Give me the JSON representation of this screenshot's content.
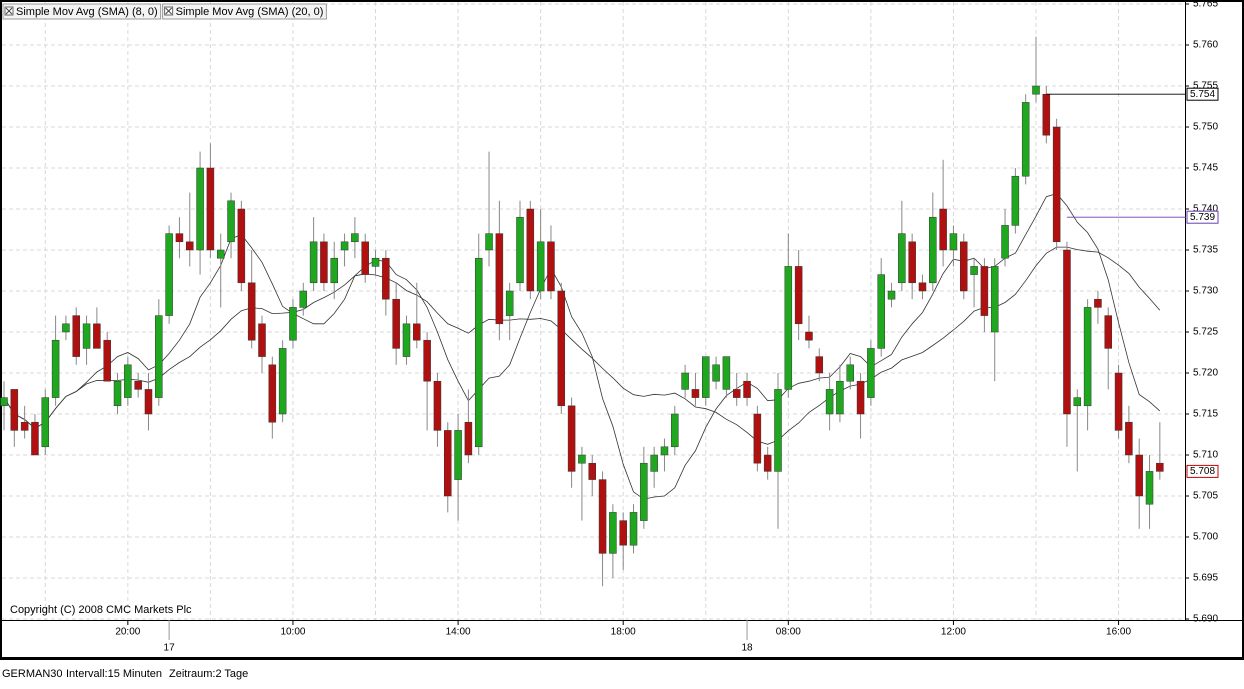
{
  "chart_data": {
    "type": "candlestick",
    "open": [
      5.716,
      5.718,
      5.714,
      5.714,
      5.711,
      5.717,
      5.725,
      5.727,
      5.723,
      5.726,
      5.724,
      5.716,
      5.717,
      5.719,
      5.718,
      5.717,
      5.727,
      5.737,
      5.736,
      5.735,
      5.745,
      5.734,
      5.736,
      5.74,
      5.731,
      5.726,
      5.721,
      5.715,
      5.724,
      5.728,
      5.731,
      5.736,
      5.731,
      5.735,
      5.736,
      5.736,
      5.733,
      5.734,
      5.729,
      5.722,
      5.726,
      5.724,
      5.719,
      5.713,
      5.707,
      5.714,
      5.711,
      5.735,
      5.737,
      5.727,
      5.731,
      5.74,
      5.73,
      5.736,
      5.73,
      5.716,
      5.709,
      5.709,
      5.707,
      5.698,
      5.702,
      5.699,
      5.702,
      5.708,
      5.71,
      5.711,
      5.718,
      5.718,
      5.717,
      5.719,
      5.718,
      5.718,
      5.719,
      5.715,
      5.71,
      5.708,
      5.718,
      5.733,
      5.725,
      5.722,
      5.715,
      5.715,
      5.719,
      5.719,
      5.717,
      5.723,
      5.729,
      5.731,
      5.736,
      5.731,
      5.731,
      5.74,
      5.735,
      5.736,
      5.732,
      5.733,
      5.725,
      5.734,
      5.738,
      5.744,
      5.754,
      5.754,
      5.75,
      5.735,
      5.716,
      5.716,
      5.729,
      5.727,
      5.72,
      5.714,
      5.71,
      5.704,
      5.709
    ],
    "high": [
      5.719,
      5.718,
      5.716,
      5.715,
      5.718,
      5.727,
      5.727,
      5.728,
      5.727,
      5.728,
      5.725,
      5.72,
      5.722,
      5.72,
      5.72,
      5.729,
      5.738,
      5.739,
      5.742,
      5.747,
      5.748,
      5.737,
      5.742,
      5.741,
      5.735,
      5.727,
      5.722,
      5.724,
      5.729,
      5.731,
      5.739,
      5.737,
      5.736,
      5.737,
      5.739,
      5.737,
      5.735,
      5.735,
      5.731,
      5.727,
      5.731,
      5.725,
      5.72,
      5.714,
      5.715,
      5.718,
      5.737,
      5.747,
      5.741,
      5.731,
      5.741,
      5.741,
      5.74,
      5.738,
      5.731,
      5.717,
      5.711,
      5.71,
      5.708,
      5.704,
      5.703,
      5.704,
      5.711,
      5.711,
      5.712,
      5.716,
      5.721,
      5.72,
      5.722,
      5.722,
      5.722,
      5.72,
      5.72,
      5.716,
      5.711,
      5.72,
      5.737,
      5.735,
      5.727,
      5.723,
      5.72,
      5.721,
      5.722,
      5.72,
      5.724,
      5.734,
      5.731,
      5.741,
      5.737,
      5.732,
      5.742,
      5.746,
      5.738,
      5.737,
      5.734,
      5.734,
      5.734,
      5.74,
      5.745,
      5.754,
      5.761,
      5.755,
      5.751,
      5.736,
      5.718,
      5.729,
      5.73,
      5.728,
      5.721,
      5.716,
      5.712,
      5.71,
      5.714
    ],
    "low": [
      5.713,
      5.711,
      5.712,
      5.71,
      5.71,
      5.716,
      5.724,
      5.721,
      5.721,
      5.723,
      5.719,
      5.715,
      5.716,
      5.717,
      5.713,
      5.716,
      5.726,
      5.734,
      5.733,
      5.732,
      5.734,
      5.728,
      5.734,
      5.73,
      5.723,
      5.72,
      5.712,
      5.714,
      5.723,
      5.727,
      5.73,
      5.73,
      5.729,
      5.733,
      5.734,
      5.731,
      5.732,
      5.727,
      5.721,
      5.721,
      5.723,
      5.713,
      5.711,
      5.703,
      5.702,
      5.709,
      5.71,
      5.733,
      5.724,
      5.724,
      5.73,
      5.729,
      5.729,
      5.729,
      5.715,
      5.706,
      5.702,
      5.705,
      5.694,
      5.695,
      5.696,
      5.698,
      5.701,
      5.706,
      5.708,
      5.71,
      5.717,
      5.716,
      5.716,
      5.718,
      5.717,
      5.716,
      5.716,
      5.708,
      5.707,
      5.701,
      5.717,
      5.724,
      5.723,
      5.719,
      5.713,
      5.714,
      5.718,
      5.712,
      5.716,
      5.722,
      5.728,
      5.73,
      5.729,
      5.729,
      5.73,
      5.733,
      5.733,
      5.729,
      5.728,
      5.725,
      5.719,
      5.733,
      5.737,
      5.743,
      5.753,
      5.748,
      5.735,
      5.711,
      5.708,
      5.713,
      5.726,
      5.718,
      5.712,
      5.709,
      5.701,
      5.701,
      5.707
    ],
    "close": [
      5.717,
      5.713,
      5.713,
      5.71,
      5.717,
      5.724,
      5.726,
      5.722,
      5.726,
      5.723,
      5.719,
      5.719,
      5.721,
      5.718,
      5.715,
      5.727,
      5.737,
      5.736,
      5.735,
      5.745,
      5.735,
      5.735,
      5.741,
      5.731,
      5.724,
      5.722,
      5.714,
      5.723,
      5.728,
      5.73,
      5.736,
      5.731,
      5.734,
      5.736,
      5.737,
      5.732,
      5.734,
      5.729,
      5.723,
      5.726,
      5.724,
      5.719,
      5.713,
      5.705,
      5.713,
      5.71,
      5.734,
      5.737,
      5.726,
      5.73,
      5.739,
      5.73,
      5.736,
      5.73,
      5.716,
      5.708,
      5.71,
      5.707,
      5.698,
      5.703,
      5.699,
      5.703,
      5.709,
      5.71,
      5.711,
      5.715,
      5.72,
      5.717,
      5.722,
      5.721,
      5.722,
      5.717,
      5.717,
      5.709,
      5.708,
      5.718,
      5.733,
      5.726,
      5.724,
      5.72,
      5.718,
      5.719,
      5.721,
      5.715,
      5.723,
      5.732,
      5.73,
      5.737,
      5.731,
      5.73,
      5.739,
      5.735,
      5.737,
      5.73,
      5.733,
      5.727,
      5.733,
      5.738,
      5.744,
      5.753,
      5.755,
      5.749,
      5.736,
      5.715,
      5.717,
      5.728,
      5.728,
      5.723,
      5.713,
      5.71,
      5.705,
      5.708,
      5.708
    ],
    "up_color": "#1fa81f",
    "down_color": "#b01010",
    "indicators": [
      {
        "name": "Simple Mov Avg (SMA) (8, 0)",
        "period": 8,
        "color": "#333333"
      },
      {
        "name": "Simple Mov Avg (SMA) (20, 0)",
        "period": 20,
        "color": "#333333"
      }
    ],
    "ylim": [
      5.69,
      5.765
    ],
    "yticks": [
      {
        "value": 5.69,
        "label": "5.690"
      },
      5.695,
      {
        "value": 5.7,
        "label": "5.700"
      },
      5.705,
      {
        "value": 5.71,
        "label": "5.710"
      },
      5.715,
      {
        "value": 5.72,
        "label": "5.720"
      },
      5.725,
      {
        "value": 5.73,
        "label": "5.730"
      },
      5.735,
      {
        "value": 5.74,
        "label": "5.740"
      },
      5.745,
      {
        "value": 5.75,
        "label": "5.750"
      },
      5.755,
      {
        "value": 5.76,
        "label": "5.760"
      },
      5.765
    ],
    "xticks": [
      {
        "value": 12,
        "label": "20:00"
      },
      {
        "value": 28,
        "label": "10:00"
      },
      {
        "value": 44,
        "label": "14:00"
      },
      {
        "value": 60,
        "label": "18:00"
      },
      {
        "value": 76,
        "label": "08:00"
      },
      {
        "value": 92,
        "label": "12:00"
      },
      {
        "value": 108,
        "label": "16:00"
      }
    ],
    "minor_xticks": [
      4,
      20,
      36,
      52,
      68,
      84,
      100
    ],
    "day_ticks": [
      {
        "value": 16,
        "label": "17"
      },
      {
        "value": 72,
        "label": "18"
      }
    ],
    "price_markers": [
      {
        "value": 5.754,
        "color": "#000000",
        "line_from": 101
      },
      {
        "value": 5.739,
        "color": "#6a3fb0",
        "line_from": 103
      },
      {
        "value": 5.708,
        "color": "#cc0000"
      }
    ],
    "grid": true,
    "copyright": "Copyright (C) 2008 CMC Markets Plc"
  },
  "footer": {
    "instrument": "GERMAN30",
    "interval": "Intervall:15 Minuten",
    "range": "Zeitraum:2 Tage"
  }
}
